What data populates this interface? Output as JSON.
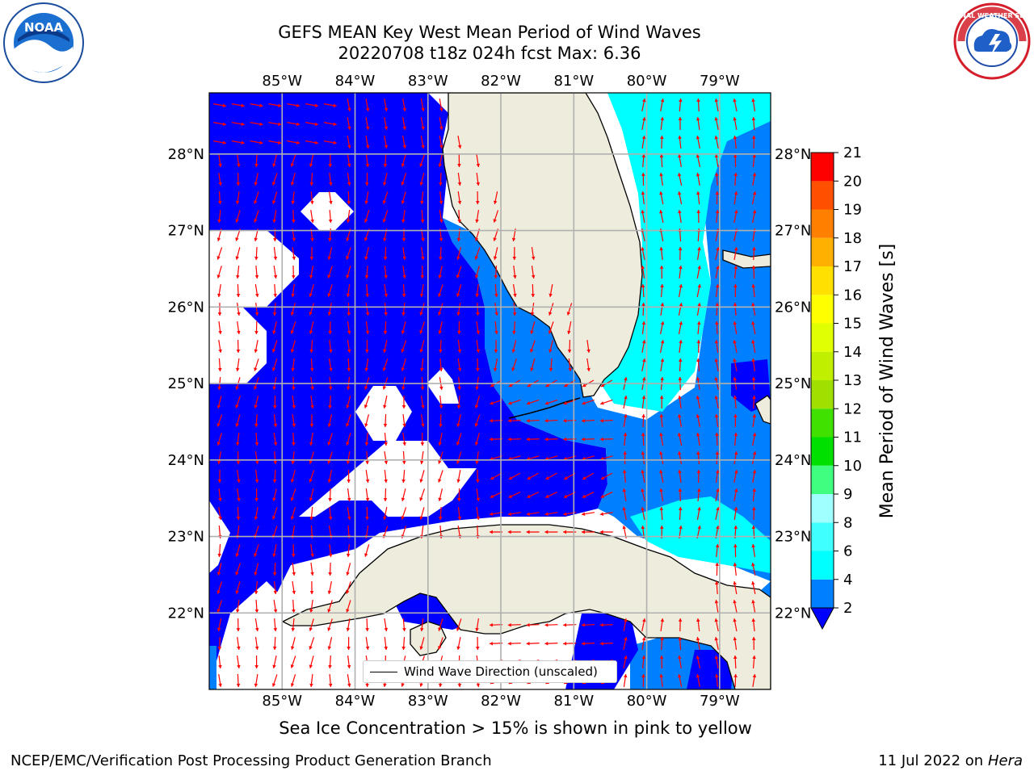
{
  "title": {
    "line1": "GEFS MEAN Key West Mean Period of Wind Waves",
    "line2": "20220708 t18z 024h fcst   Max: 6.36"
  },
  "logos": {
    "left": "noaa-logo",
    "right": "nws-logo",
    "left_text": "NOAA",
    "right_text": "NATIONAL WEATHER SERVICE"
  },
  "map": {
    "lon_labels": [
      "85°W",
      "84°W",
      "83°W",
      "82°W",
      "81°W",
      "80°W",
      "79°W"
    ],
    "lat_labels": [
      "28°N",
      "27°N",
      "26°N",
      "25°N",
      "24°N",
      "23°N",
      "22°N"
    ],
    "extent": {
      "lon": [
        -86.0,
        -78.3
      ],
      "lat": [
        21.0,
        28.8
      ]
    },
    "colors": {
      "land": "#eeecdc",
      "deep_blue": "#0000ff",
      "mid_blue": "#0080ff",
      "cyan": "#00ffff",
      "arrow": "#ff0000",
      "grid": "#b0b0b0"
    }
  },
  "legend": {
    "label": "Wind Wave Direction (unscaled)"
  },
  "colorbar": {
    "label": "Mean Period of Wind Waves [s]",
    "ticks": [
      "2",
      "4",
      "6",
      "8",
      "9",
      "10",
      "11",
      "12",
      "13",
      "14",
      "15",
      "16",
      "17",
      "18",
      "19",
      "20",
      "21"
    ],
    "colors": [
      "#0080ff",
      "#00ffff",
      "#40ffff",
      "#a0ffff",
      "#40ff80",
      "#00e000",
      "#40e000",
      "#a0e000",
      "#c0f000",
      "#e0ff00",
      "#ffff00",
      "#ffe000",
      "#ffb000",
      "#ff8000",
      "#ff5000",
      "#ff2000",
      "#ff0000"
    ],
    "extend_color": "#0000ff"
  },
  "footer": {
    "ice_note": "Sea Ice Concentration > 15% is shown in pink to yellow",
    "credit": "NCEP/EMC/Verification Post Processing Product Generation Branch",
    "date": "11 Jul 2022 on",
    "machine": "Hera"
  }
}
